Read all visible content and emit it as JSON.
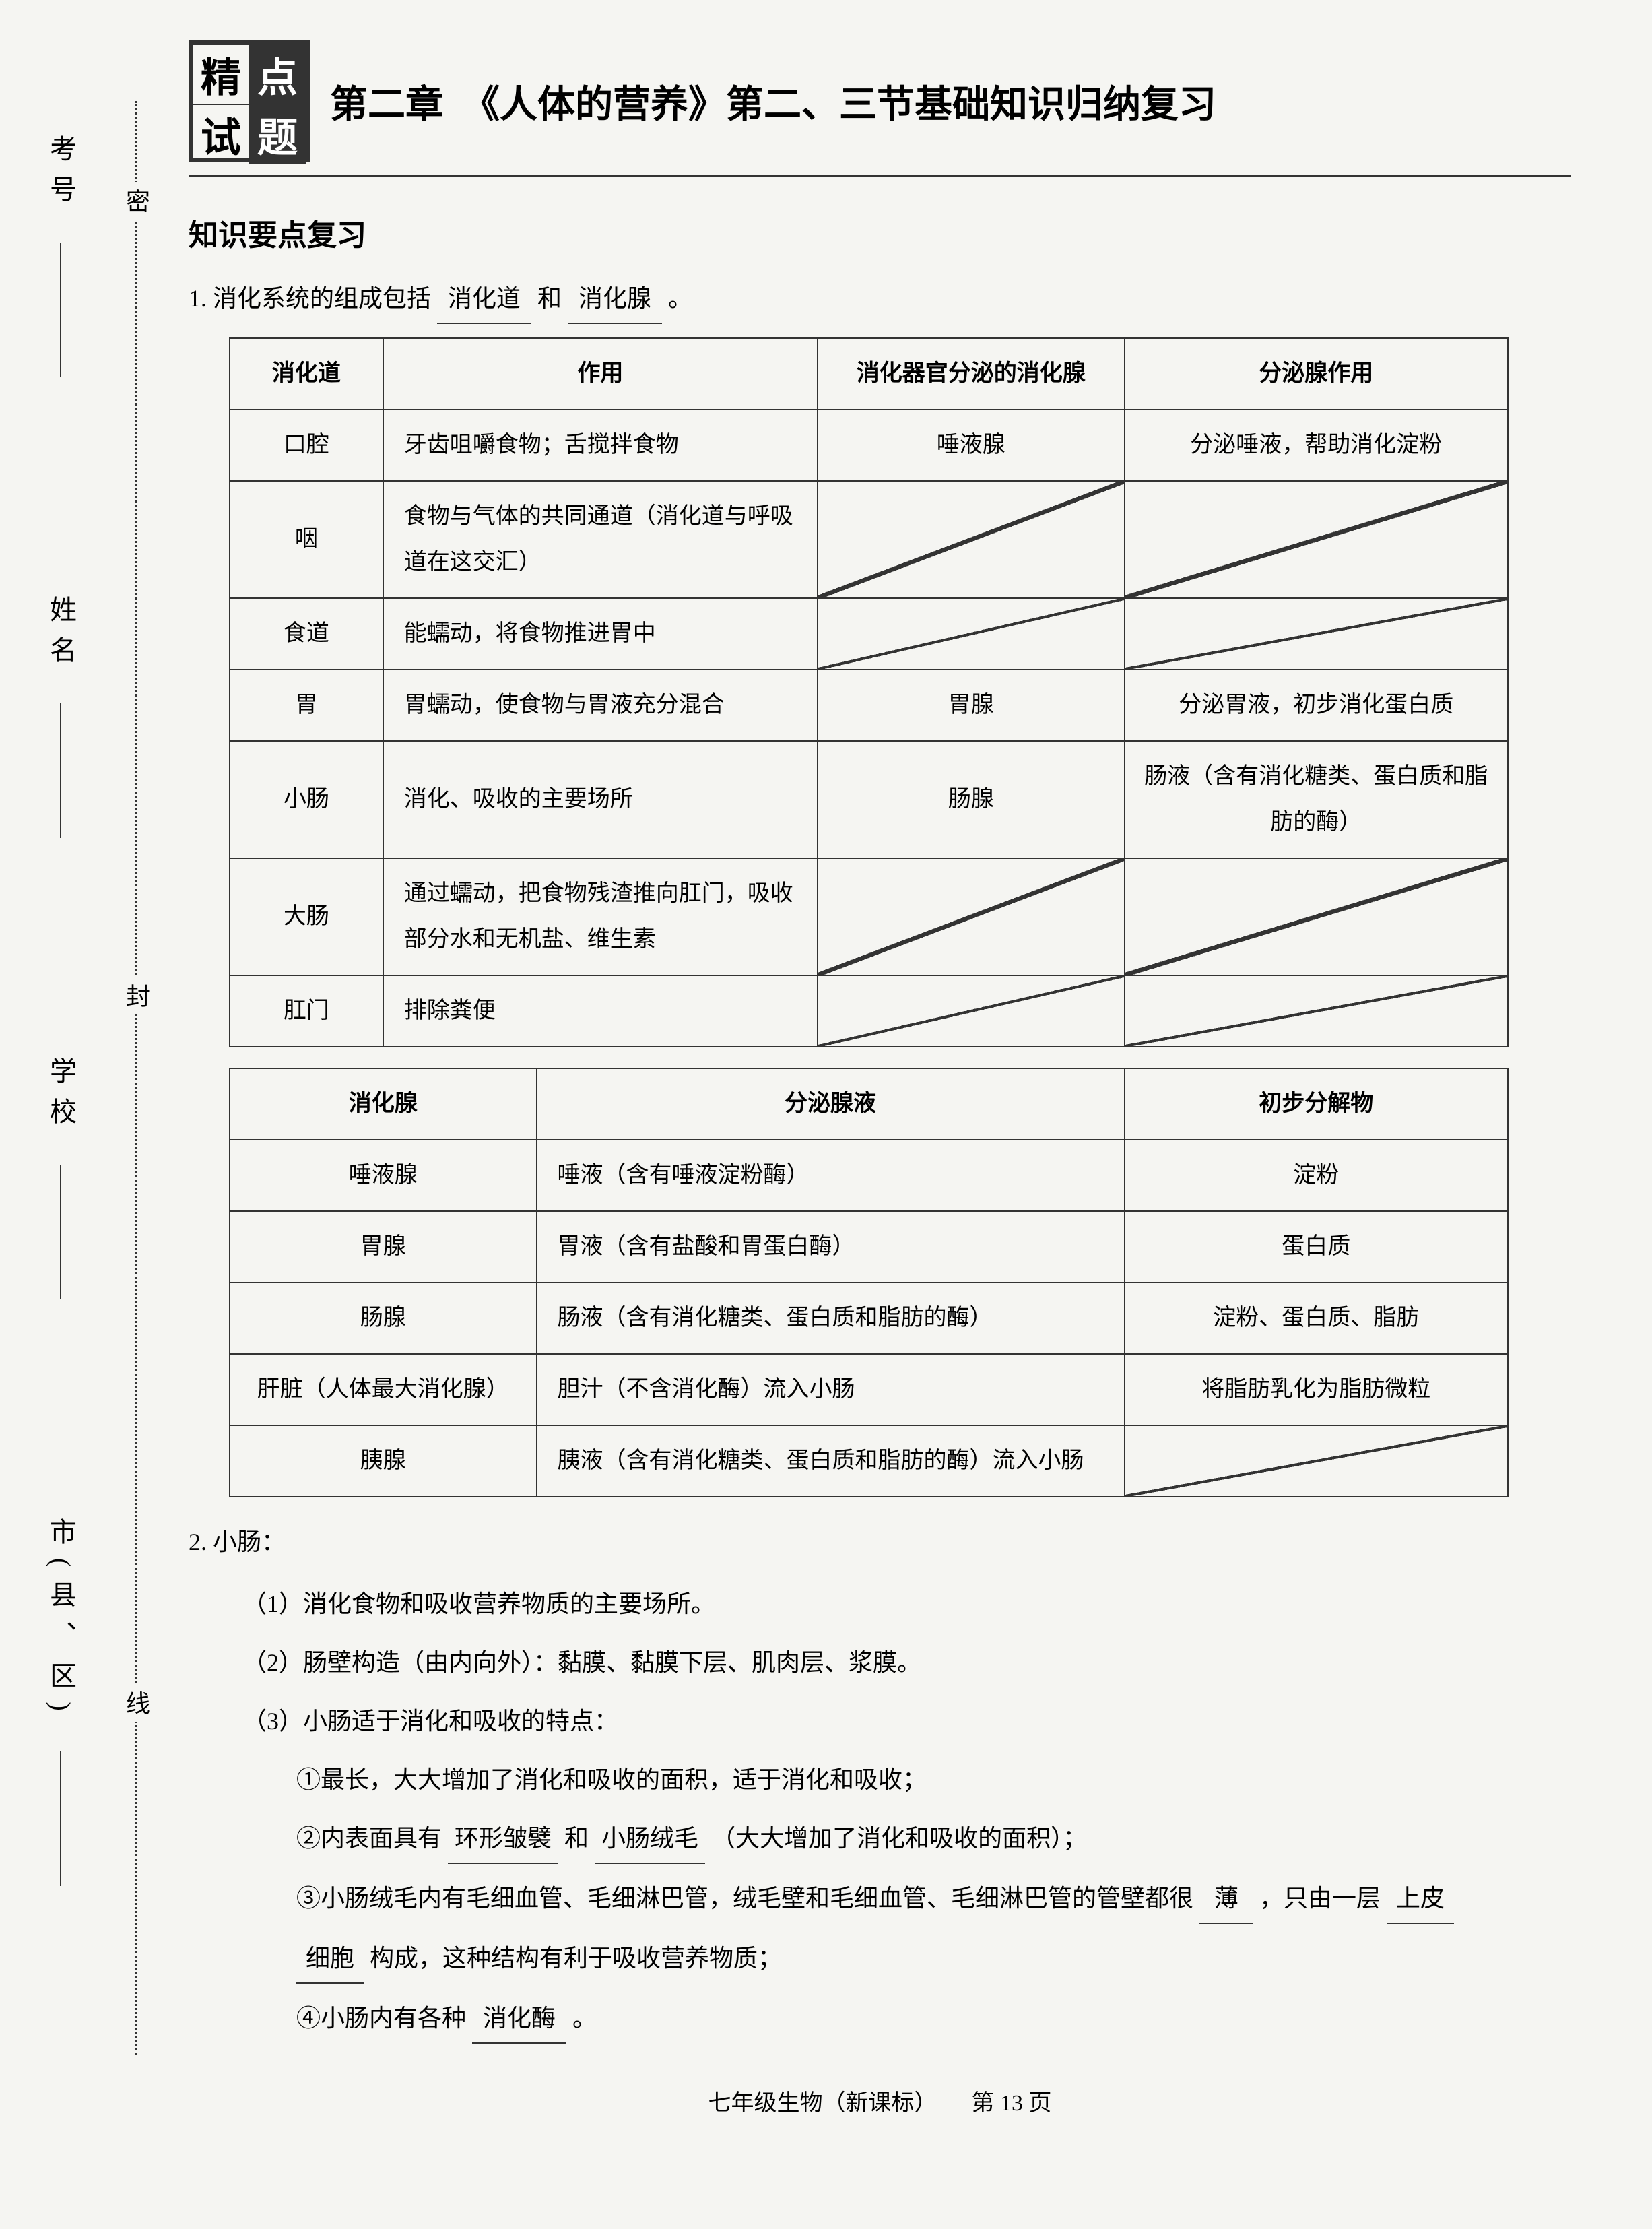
{
  "side": {
    "labels": [
      "考号",
      "姓名",
      "学校",
      "市(县、区)"
    ],
    "dotted": [
      "密",
      "封",
      "线"
    ]
  },
  "logo": [
    "精",
    "点",
    "试",
    "题"
  ],
  "title": "第二章　《人体的营养》第二、三节基础知识归纳复习",
  "section_title": "知识要点复习",
  "item1": {
    "prefix": "1. 消化系统的组成包括",
    "blank1": "消化道",
    "mid": "和",
    "blank2": "消化腺",
    "suffix": "。"
  },
  "table1": {
    "headers": [
      "消化道",
      "作用",
      "消化器官分泌的消化腺",
      "分泌腺作用"
    ],
    "rows": [
      {
        "c1": "口腔",
        "c2": "牙齿咀嚼食物；舌搅拌食物",
        "c3": "唾液腺",
        "c4": "分泌唾液，帮助消化淀粉"
      },
      {
        "c1": "咽",
        "c2": "食物与气体的共同通道（消化道与呼吸道在这交汇）",
        "c3": "DIAG",
        "c4": "DIAG"
      },
      {
        "c1": "食道",
        "c2": "能蠕动，将食物推进胃中",
        "c3": "DIAG",
        "c4": "DIAG"
      },
      {
        "c1": "胃",
        "c2": "胃蠕动，使食物与胃液充分混合",
        "c3": "胃腺",
        "c4": "分泌胃液，初步消化蛋白质"
      },
      {
        "c1": "小肠",
        "c2": "消化、吸收的主要场所",
        "c3": "肠腺",
        "c4": "肠液（含有消化糖类、蛋白质和脂肪的酶）"
      },
      {
        "c1": "大肠",
        "c2": "通过蠕动，把食物残渣推向肛门，吸收部分水和无机盐、维生素",
        "c3": "DIAG",
        "c4": "DIAG"
      },
      {
        "c1": "肛门",
        "c2": "排除粪便",
        "c3": "DIAG",
        "c4": "DIAG"
      }
    ]
  },
  "table2": {
    "headers": [
      "消化腺",
      "分泌腺液",
      "初步分解物"
    ],
    "rows": [
      {
        "c1": "唾液腺",
        "c2": "唾液（含有唾液淀粉酶）",
        "c3": "淀粉"
      },
      {
        "c1": "胃腺",
        "c2": "胃液（含有盐酸和胃蛋白酶）",
        "c3": "蛋白质"
      },
      {
        "c1": "肠腺",
        "c2": "肠液（含有消化糖类、蛋白质和脂肪的酶）",
        "c3": "淀粉、蛋白质、脂肪"
      },
      {
        "c1": "肝脏（人体最大消化腺）",
        "c2": "胆汁（不含消化酶）流入小肠",
        "c3": "将脂肪乳化为脂肪微粒"
      },
      {
        "c1": "胰腺",
        "c2": "胰液（含有消化糖类、蛋白质和脂肪的酶）流入小肠",
        "c3": "DIAG"
      }
    ]
  },
  "item2": {
    "title": "2. 小肠：",
    "sub1": "（1）消化食物和吸收营养物质的主要场所。",
    "sub2": "（2）肠壁构造（由内向外）：黏膜、黏膜下层、肌肉层、浆膜。",
    "sub3": "（3）小肠适于消化和吸收的特点：",
    "ss1": "①最长，大大增加了消化和吸收的面积，适于消化和吸收；",
    "ss2_a": "②内表面具有",
    "ss2_b1": "环形皱襞",
    "ss2_c": "和",
    "ss2_b2": "小肠绒毛",
    "ss2_d": "（大大增加了消化和吸收的面积）；",
    "ss3_a": "③小肠绒毛内有毛细血管、毛细淋巴管，绒毛壁和毛细血管、毛细淋巴管的管壁都很",
    "ss3_b1": "薄",
    "ss3_c": "，只由一层",
    "ss3_b2": "上皮",
    "ss3_b3": "细胞",
    "ss3_d": "构成，这种结构有利于吸收营养物质；",
    "ss4_a": "④小肠内有各种",
    "ss4_b": "消化酶",
    "ss4_c": "。"
  },
  "footer": "七年级生物（新课标）　　第 13 页"
}
